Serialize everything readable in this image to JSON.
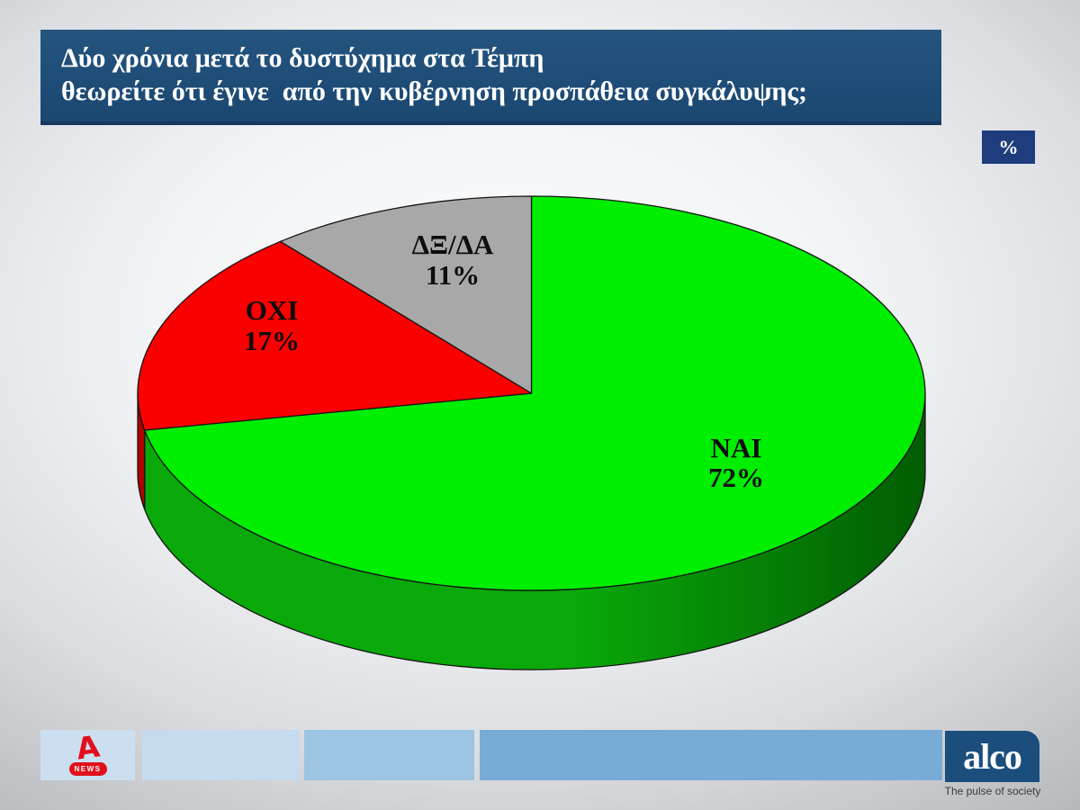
{
  "header": {
    "question": "Δύο χρόνια μετά το δυστύχημα στα Τέμπη\nθεωρείτε ότι έγινε  από την κυβέρνηση προσπάθεια συγκάλυψης;"
  },
  "unit_badge": "%",
  "chart_data": {
    "type": "pie",
    "style": "3d",
    "title": "Δύο χρόνια μετά το δυστύχημα στα Τέμπη θεωρείτε ότι έγινε από την κυβέρνηση προσπάθεια συγκάλυψης;",
    "unit": "%",
    "start_angle_deg": 0,
    "direction": "clockwise",
    "legend": "none",
    "slices": [
      {
        "label": "ΝΑΙ",
        "value": 72,
        "value_text": "72%",
        "color": "#00ee00",
        "side_color_start": "#09a909",
        "side_color_end": "#025c02"
      },
      {
        "label": "ΟΧΙ",
        "value": 17,
        "value_text": "17%",
        "color": "#fb0000",
        "side_color": "#b00000"
      },
      {
        "label": "ΔΞ/ΔΑ",
        "value": 11,
        "value_text": "11%",
        "color": "#a8a8a8"
      }
    ]
  },
  "footer": {
    "alpha": {
      "glyph": "A",
      "news_label": "NEWS"
    },
    "alco": {
      "logo_text": "alco",
      "tagline": "The pulse of society"
    }
  }
}
